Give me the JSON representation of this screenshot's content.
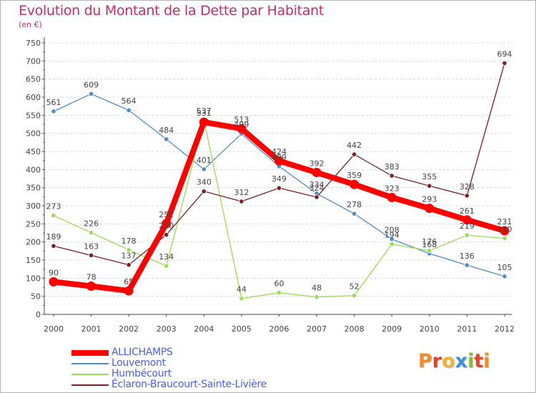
{
  "header": {
    "title": "Evolution du Montant de la Dette par Habitant",
    "unit": "(en €)"
  },
  "logo": {
    "text": "Proxiti",
    "letter_colors": [
      "#f28c28",
      "#e0452b",
      "#f2b233",
      "#3a8fd9",
      "#88b933",
      "#e0452b",
      "#f28c28"
    ]
  },
  "chart_data": {
    "type": "line",
    "title": "Evolution du Montant de la Dette par Habitant",
    "subtitle": "(en €)",
    "xlabel": "",
    "ylabel": "",
    "x": [
      "2000",
      "2001",
      "2002",
      "2003",
      "2004",
      "2005",
      "2006",
      "2007",
      "2008",
      "2009",
      "2010",
      "2011",
      "2012"
    ],
    "ylim": [
      0,
      750
    ],
    "yticks": [
      0,
      50,
      100,
      150,
      200,
      250,
      300,
      350,
      400,
      450,
      500,
      550,
      600,
      650,
      700,
      750
    ],
    "grid": "horizontal dashed",
    "legend_position": "bottom-left",
    "series": [
      {
        "name": "Louvemont",
        "color": "#4f8cc9",
        "values": [
          561,
          609,
          564,
          484,
          401,
          499,
          409,
          334,
          278,
          208,
          168,
          136,
          105
        ]
      },
      {
        "name": "Humbécourt",
        "color": "#99dd55",
        "values": [
          273,
          226,
          178,
          134,
          537,
          44,
          60,
          48,
          52,
          194,
          176,
          219,
          210
        ]
      },
      {
        "name": "Éclaron-Braucourt-Sainte-Livière",
        "color": "#7a1f22",
        "values": [
          189,
          163,
          137,
          220,
          340,
          312,
          349,
          324,
          442,
          383,
          355,
          328,
          694
        ]
      },
      {
        "name": "ALLICHAMPS",
        "color": "#ff0000",
        "values": [
          90,
          78,
          65,
          251,
          531,
          513,
          424,
          392,
          359,
          323,
          293,
          261,
          231
        ]
      }
    ],
    "legend_order": [
      "ALLICHAMPS",
      "Louvemont",
      "Humbécourt",
      "Éclaron-Braucourt-Sainte-Livière"
    ]
  }
}
